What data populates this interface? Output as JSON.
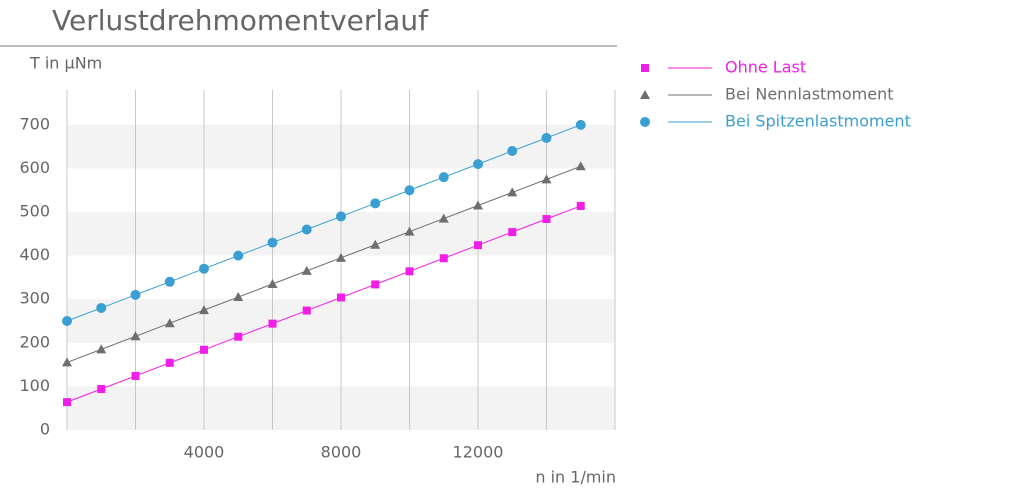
{
  "chart_data": {
    "type": "line",
    "title": "Verlustdrehmomentverlauf",
    "y_label": "T in µNm",
    "x_label": "n in 1/min",
    "x": [
      0,
      1000,
      2000,
      3000,
      4000,
      5000,
      6000,
      7000,
      8000,
      9000,
      10000,
      11000,
      12000,
      13000,
      14000,
      15000
    ],
    "series": [
      {
        "name": "Ohne Last",
        "color": "#f01ee6",
        "marker": "square",
        "values": [
          64,
          94,
          124,
          154,
          184,
          214,
          244,
          274,
          304,
          334,
          364,
          394,
          424,
          454,
          484,
          514
        ]
      },
      {
        "name": "Bei Nennlastmoment",
        "color": "#6e6e6e",
        "marker": "triangle",
        "values": [
          155,
          185,
          215,
          245,
          275,
          305,
          335,
          365,
          395,
          425,
          455,
          485,
          515,
          545,
          575,
          605
        ]
      },
      {
        "name": "Bei Spitzenlastmoment",
        "color": "#3a9fd2",
        "marker": "circle",
        "values": [
          250,
          280,
          310,
          340,
          370,
          400,
          430,
          460,
          490,
          520,
          550,
          580,
          610,
          640,
          670,
          700
        ]
      }
    ],
    "xlim": [
      0,
      16000
    ],
    "xticks": [
      4000,
      8000,
      12000
    ],
    "x_minor_gridlines": [
      2000,
      6000,
      10000,
      14000
    ],
    "ylim": [
      0,
      780
    ],
    "yticks": [
      0,
      100,
      200,
      300,
      400,
      500,
      600,
      700
    ],
    "banded_background": true,
    "grid": true,
    "legend": "right"
  }
}
